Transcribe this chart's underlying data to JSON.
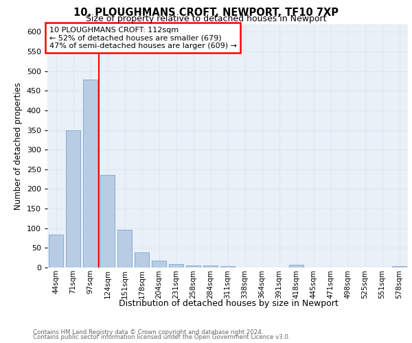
{
  "title1": "10, PLOUGHMANS CROFT, NEWPORT, TF10 7XP",
  "title2": "Size of property relative to detached houses in Newport",
  "xlabel": "Distribution of detached houses by size in Newport",
  "ylabel": "Number of detached properties",
  "categories": [
    "44sqm",
    "71sqm",
    "97sqm",
    "124sqm",
    "151sqm",
    "178sqm",
    "204sqm",
    "231sqm",
    "258sqm",
    "284sqm",
    "311sqm",
    "338sqm",
    "364sqm",
    "391sqm",
    "418sqm",
    "445sqm",
    "471sqm",
    "498sqm",
    "525sqm",
    "551sqm",
    "578sqm"
  ],
  "values": [
    83,
    350,
    478,
    235,
    96,
    38,
    18,
    8,
    6,
    5,
    4,
    0,
    0,
    0,
    7,
    0,
    0,
    0,
    0,
    0,
    4
  ],
  "bar_color": "#b8cce4",
  "bar_edgecolor": "#6699cc",
  "vline_x": 2.5,
  "vline_color": "red",
  "annotation_text": "10 PLOUGHMANS CROFT: 112sqm\n← 52% of detached houses are smaller (679)\n47% of semi-detached houses are larger (609) →",
  "annotation_box_color": "white",
  "annotation_box_edgecolor": "red",
  "footer1": "Contains HM Land Registry data © Crown copyright and database right 2024.",
  "footer2": "Contains public sector information licensed under the Open Government Licence v3.0.",
  "ylim": [
    0,
    620
  ],
  "yticks": [
    0,
    50,
    100,
    150,
    200,
    250,
    300,
    350,
    400,
    450,
    500,
    550,
    600
  ],
  "grid_color": "#dde7f0",
  "bg_color": "#eaf0f8"
}
